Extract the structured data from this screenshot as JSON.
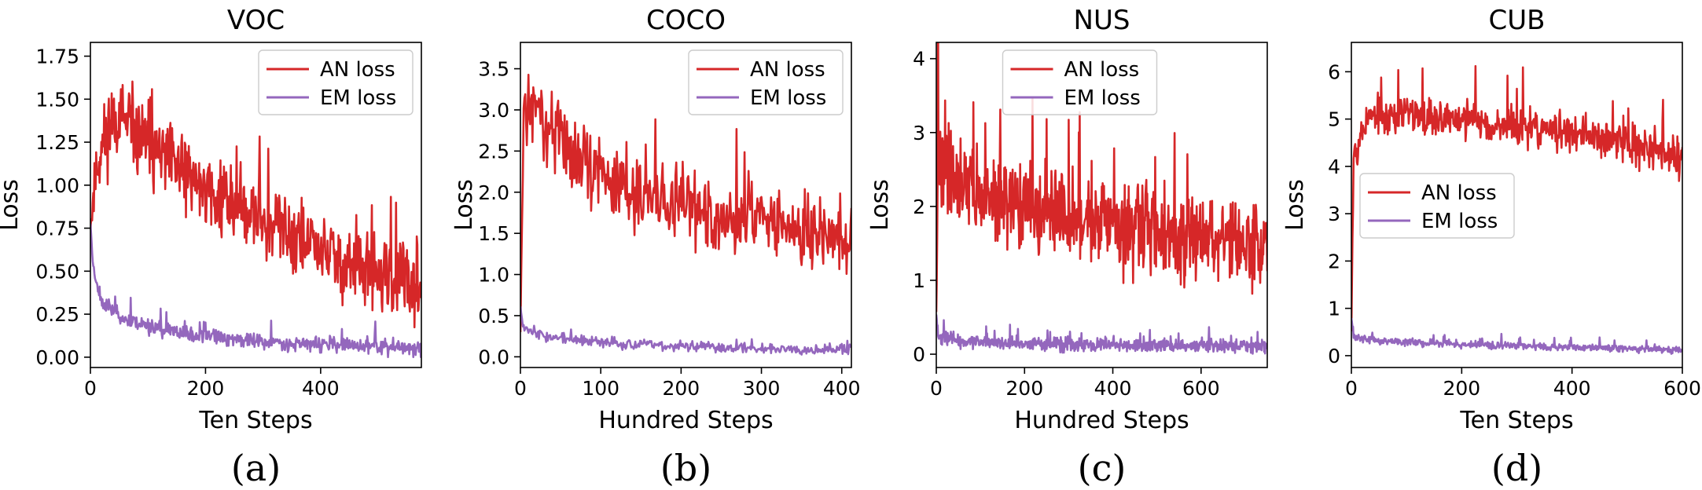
{
  "colors": {
    "an": "#d62728",
    "em": "#9467bd"
  },
  "chart_data": [
    {
      "type": "line",
      "id": "a",
      "title": "VOC",
      "caption": "(a)",
      "xlabel": "Ten Steps",
      "ylabel": "Loss",
      "xlim": [
        0,
        575
      ],
      "ylim": [
        -0.06,
        1.83
      ],
      "xticks": [
        0,
        200,
        400
      ],
      "xtick_labels": [
        "0",
        "200",
        "400"
      ],
      "yticks": [
        0,
        0.25,
        0.5,
        0.75,
        1.0,
        1.25,
        1.5,
        1.75
      ],
      "ytick_labels": [
        "0.00",
        "0.25",
        "0.50",
        "0.75",
        "1.00",
        "1.25",
        "1.50",
        "1.75"
      ],
      "legend": "top-right",
      "series": [
        {
          "name": "AN loss",
          "color_key": "an",
          "n": 575,
          "anchors": [
            [
              0,
              0.75
            ],
            [
              10,
              1.1
            ],
            [
              40,
              1.42
            ],
            [
              100,
              1.22
            ],
            [
              200,
              0.98
            ],
            [
              300,
              0.8
            ],
            [
              400,
              0.62
            ],
            [
              500,
              0.45
            ],
            [
              575,
              0.42
            ]
          ],
          "noise": 0.18,
          "seed": 11
        },
        {
          "name": "EM loss",
          "color_key": "em",
          "n": 575,
          "anchors": [
            [
              0,
              0.78
            ],
            [
              5,
              0.52
            ],
            [
              20,
              0.32
            ],
            [
              60,
              0.22
            ],
            [
              150,
              0.14
            ],
            [
              300,
              0.09
            ],
            [
              575,
              0.05
            ]
          ],
          "noise": 0.035,
          "seed": 23
        }
      ]
    },
    {
      "type": "line",
      "id": "b",
      "title": "COCO",
      "caption": "(b)",
      "xlabel": "Hundred Steps",
      "ylabel": "Loss",
      "xlim": [
        0,
        412
      ],
      "ylim": [
        -0.13,
        3.82
      ],
      "xticks": [
        0,
        100,
        200,
        300,
        400
      ],
      "xtick_labels": [
        "0",
        "100",
        "200",
        "300",
        "400"
      ],
      "yticks": [
        0,
        0.5,
        1.0,
        1.5,
        2.0,
        2.5,
        3.0,
        3.5
      ],
      "ytick_labels": [
        "0.0",
        "0.5",
        "1.0",
        "1.5",
        "2.0",
        "2.5",
        "3.0",
        "3.5"
      ],
      "legend": "top-right",
      "series": [
        {
          "name": "AN loss",
          "color_key": "an",
          "n": 412,
          "anchors": [
            [
              0,
              0.4
            ],
            [
              4,
              2.85
            ],
            [
              15,
              3.05
            ],
            [
              50,
              2.65
            ],
            [
              100,
              2.15
            ],
            [
              200,
              1.85
            ],
            [
              300,
              1.65
            ],
            [
              412,
              1.45
            ]
          ],
          "noise": 0.36,
          "seed": 31
        },
        {
          "name": "EM loss",
          "color_key": "em",
          "n": 412,
          "anchors": [
            [
              0,
              0.62
            ],
            [
              3,
              0.38
            ],
            [
              30,
              0.25
            ],
            [
              100,
              0.17
            ],
            [
              250,
              0.11
            ],
            [
              412,
              0.09
            ]
          ],
          "noise": 0.05,
          "seed": 37
        }
      ]
    },
    {
      "type": "line",
      "id": "c",
      "title": "NUS",
      "caption": "(c)",
      "xlabel": "Hundred Steps",
      "ylabel": "Loss",
      "xlim": [
        0,
        750
      ],
      "ylim": [
        -0.18,
        4.22
      ],
      "xticks": [
        0,
        200,
        400,
        600
      ],
      "xtick_labels": [
        "0",
        "200",
        "400",
        "600"
      ],
      "yticks": [
        0,
        1,
        2,
        3,
        4
      ],
      "ytick_labels": [
        "0",
        "1",
        "2",
        "3",
        "4"
      ],
      "legend": "top-center",
      "series": [
        {
          "name": "AN loss",
          "color_key": "an",
          "n": 750,
          "anchors": [
            [
              0,
              0.5
            ],
            [
              4,
              2.6
            ],
            [
              20,
              2.55
            ],
            [
              100,
              2.15
            ],
            [
              300,
              1.85
            ],
            [
              500,
              1.65
            ],
            [
              750,
              1.45
            ]
          ],
          "noise": 0.45,
          "seed": 41
        },
        {
          "name": "EM loss",
          "color_key": "em",
          "n": 750,
          "anchors": [
            [
              0,
              0.55
            ],
            [
              4,
              0.25
            ],
            [
              50,
              0.18
            ],
            [
              300,
              0.13
            ],
            [
              750,
              0.1
            ]
          ],
          "noise": 0.07,
          "seed": 43
        }
      ]
    },
    {
      "type": "line",
      "id": "d",
      "title": "CUB",
      "caption": "(d)",
      "xlabel": "Ten Steps",
      "ylabel": "Loss",
      "xlim": [
        0,
        600
      ],
      "ylim": [
        -0.25,
        6.62
      ],
      "xticks": [
        0,
        200,
        400,
        600
      ],
      "xtick_labels": [
        "0",
        "200",
        "400",
        "600"
      ],
      "yticks": [
        0,
        1,
        2,
        3,
        4,
        5,
        6
      ],
      "ytick_labels": [
        "0",
        "1",
        "2",
        "3",
        "4",
        "5",
        "6"
      ],
      "legend": "center-left",
      "series": [
        {
          "name": "AN loss",
          "color_key": "an",
          "n": 600,
          "anchors": [
            [
              0,
              0.6
            ],
            [
              4,
              4.3
            ],
            [
              30,
              5.05
            ],
            [
              100,
              5.1
            ],
            [
              200,
              5.0
            ],
            [
              300,
              4.85
            ],
            [
              400,
              4.7
            ],
            [
              500,
              4.5
            ],
            [
              600,
              4.2
            ]
          ],
          "noise": 0.32,
          "seed": 53
        },
        {
          "name": "EM loss",
          "color_key": "em",
          "n": 600,
          "anchors": [
            [
              0,
              0.8
            ],
            [
              4,
              0.4
            ],
            [
              50,
              0.32
            ],
            [
              200,
              0.24
            ],
            [
              400,
              0.18
            ],
            [
              600,
              0.12
            ]
          ],
          "noise": 0.06,
          "seed": 59
        }
      ]
    }
  ]
}
